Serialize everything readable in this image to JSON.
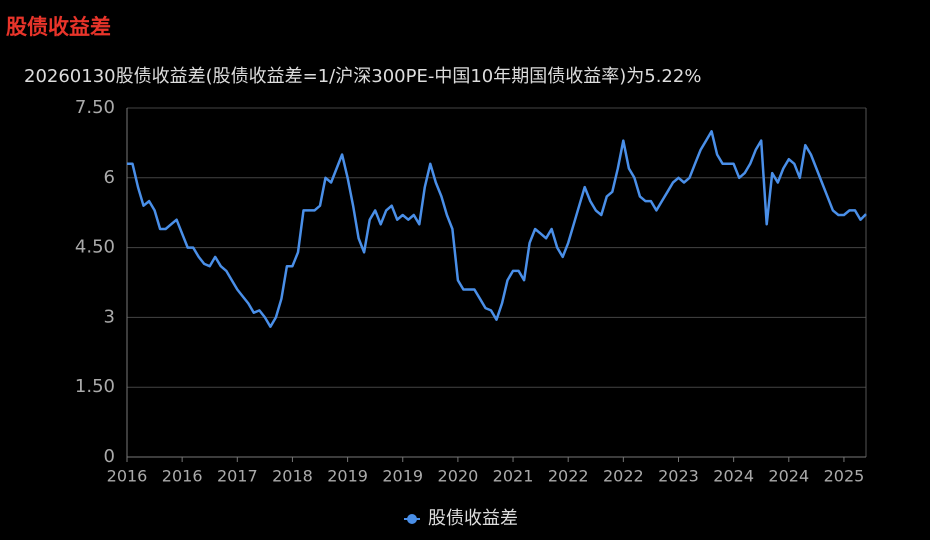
{
  "chart_data": {
    "type": "line",
    "title": "股债收益差",
    "subtitle": "20260130股债收益差(股债收益差=1/沪深300PE-中国10年期国债收益率)为5.22%",
    "categories": [
      "2016",
      null,
      null,
      null,
      null,
      null,
      null,
      null,
      null,
      null,
      "2016",
      null,
      null,
      null,
      null,
      null,
      null,
      null,
      null,
      null,
      "2017",
      null,
      null,
      null,
      null,
      null,
      null,
      null,
      null,
      null,
      "2018",
      null,
      null,
      null,
      null,
      null,
      null,
      null,
      null,
      null,
      "2019",
      null,
      null,
      null,
      null,
      null,
      null,
      null,
      null,
      null,
      "2019",
      null,
      null,
      null,
      null,
      null,
      null,
      null,
      null,
      null,
      "2020",
      null,
      null,
      null,
      null,
      null,
      null,
      null,
      null,
      null,
      "2021",
      null,
      null,
      null,
      null,
      null,
      null,
      null,
      null,
      null,
      "2022",
      null,
      null,
      null,
      null,
      null,
      null,
      null,
      null,
      null,
      "2022",
      null,
      null,
      null,
      null,
      null,
      null,
      null,
      null,
      null,
      "2023",
      null,
      null,
      null,
      null,
      null,
      null,
      null,
      null,
      null,
      "2024",
      null,
      null,
      null,
      null,
      null,
      null,
      null,
      null,
      null,
      "2024",
      null,
      null,
      null,
      null,
      null,
      null,
      null,
      null,
      null,
      "2025",
      null,
      null,
      null,
      null
    ],
    "series": [
      {
        "name": "股债收益差",
        "color": "#4a8fe8",
        "values": [
          6.3,
          6.3,
          5.8,
          5.4,
          5.5,
          5.3,
          4.9,
          4.9,
          5.0,
          5.1,
          4.8,
          4.5,
          4.5,
          4.3,
          4.15,
          4.1,
          4.3,
          4.1,
          4.0,
          3.8,
          3.6,
          3.45,
          3.3,
          3.1,
          3.15,
          3.0,
          2.8,
          3.0,
          3.4,
          4.1,
          4.1,
          4.4,
          5.3,
          5.3,
          5.3,
          5.4,
          6.0,
          5.9,
          6.2,
          6.5,
          6.0,
          5.4,
          4.7,
          4.4,
          5.1,
          5.3,
          5.0,
          5.3,
          5.4,
          5.1,
          5.2,
          5.1,
          5.2,
          5.0,
          5.8,
          6.3,
          5.9,
          5.6,
          5.2,
          4.9,
          3.8,
          3.6,
          3.6,
          3.6,
          3.4,
          3.2,
          3.15,
          2.95,
          3.3,
          3.8,
          4.0,
          4.0,
          3.8,
          4.6,
          4.9,
          4.8,
          4.7,
          4.9,
          4.5,
          4.3,
          4.6,
          5.0,
          5.4,
          5.8,
          5.5,
          5.3,
          5.2,
          5.6,
          5.7,
          6.2,
          6.8,
          6.2,
          6.0,
          5.6,
          5.5,
          5.5,
          5.3,
          5.5,
          5.7,
          5.9,
          6.0,
          5.9,
          6.0,
          6.3,
          6.6,
          6.8,
          7.0,
          6.5,
          6.3,
          6.3,
          6.3,
          6.0,
          6.1,
          6.3,
          6.6,
          6.8,
          5.0,
          6.1,
          5.9,
          6.2,
          6.4,
          6.3,
          6.0,
          6.7,
          6.5,
          6.2,
          5.9,
          5.6,
          5.3,
          5.2,
          5.2,
          5.3,
          5.3,
          5.1,
          5.22
        ]
      }
    ],
    "ylim": [
      0,
      7.5
    ],
    "yticks": [
      0,
      {
        "value": 1.5,
        "label": "1.50"
      },
      3,
      {
        "value": 4.5,
        "label": "4.50"
      },
      6,
      {
        "value": 7.5,
        "label": "7.50"
      }
    ],
    "grid": true,
    "legend": "bottom"
  }
}
